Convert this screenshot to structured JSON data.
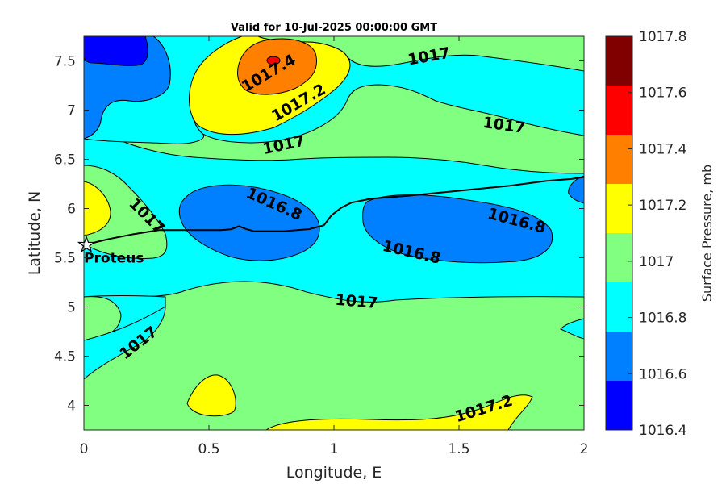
{
  "chart_data": {
    "type": "contour",
    "title": "Valid for 10-Jul-2025 00:00:00 GMT",
    "xlabel": "Longitude, E",
    "ylabel": "Latitude, N",
    "xlim": [
      0,
      2
    ],
    "ylim": [
      3.75,
      7.75
    ],
    "x_ticks": [
      0,
      0.5,
      1,
      1.5,
      2
    ],
    "y_ticks": [
      4,
      4.5,
      5,
      5.5,
      6,
      6.5,
      7,
      7.5
    ],
    "x_tick_labels": [
      "0",
      "0.5",
      "1",
      "1.5",
      "2"
    ],
    "y_tick_labels": [
      "4",
      "4.5",
      "5",
      "5.5",
      "6",
      "6.5",
      "7",
      "7.5"
    ],
    "colorbar": {
      "label": "Surface Pressure, mb",
      "levels": [
        1016.4,
        1016.6,
        1016.8,
        1017,
        1017.2,
        1017.4,
        1017.6,
        1017.8
      ],
      "tick_labels": [
        "1016.4",
        "1016.6",
        "1016.8",
        "1017",
        "1017.2",
        "1017.4",
        "1017.6",
        "1017.8"
      ],
      "colors": [
        "#0000ff",
        "#0080ff",
        "#00ffff",
        "#80ff80",
        "#ffff00",
        "#ff8000",
        "#ff0000",
        "#800000"
      ]
    },
    "contour_labels": [
      {
        "text": "1017.4",
        "lon": 0.74,
        "lat": 7.37,
        "angle": -30
      },
      {
        "text": "1017.2",
        "lon": 0.86,
        "lat": 7.07,
        "angle": -30
      },
      {
        "text": "1017",
        "lon": 1.38,
        "lat": 7.54,
        "angle": -10
      },
      {
        "text": "1017",
        "lon": 1.68,
        "lat": 6.84,
        "angle": 8
      },
      {
        "text": "1017",
        "lon": 0.8,
        "lat": 6.64,
        "angle": -12
      },
      {
        "text": "1016.8",
        "lon": 0.76,
        "lat": 6.04,
        "angle": 24
      },
      {
        "text": "1017",
        "lon": 0.25,
        "lat": 5.92,
        "angle": 45
      },
      {
        "text": "1016.8",
        "lon": 1.73,
        "lat": 5.87,
        "angle": 15
      },
      {
        "text": "1016.8",
        "lon": 1.31,
        "lat": 5.55,
        "angle": 13
      },
      {
        "text": "1017",
        "lon": 1.09,
        "lat": 5.05,
        "angle": 5
      },
      {
        "text": "1017",
        "lon": 0.22,
        "lat": 4.63,
        "angle": -38
      },
      {
        "text": "1017.2",
        "lon": 1.6,
        "lat": 3.96,
        "angle": -17
      }
    ],
    "track": [
      [
        0.01,
        5.63
      ],
      [
        0.05,
        5.66
      ],
      [
        0.1,
        5.69
      ],
      [
        0.2,
        5.74
      ],
      [
        0.3,
        5.78
      ],
      [
        0.4,
        5.78
      ],
      [
        0.5,
        5.78
      ],
      [
        0.55,
        5.78
      ],
      [
        0.59,
        5.79
      ],
      [
        0.62,
        5.82
      ],
      [
        0.65,
        5.79
      ],
      [
        0.68,
        5.77
      ],
      [
        0.8,
        5.77
      ],
      [
        0.9,
        5.79
      ],
      [
        0.96,
        5.83
      ],
      [
        0.99,
        5.93
      ],
      [
        1.03,
        6.01
      ],
      [
        1.07,
        6.06
      ],
      [
        1.15,
        6.1
      ],
      [
        1.3,
        6.13
      ],
      [
        1.5,
        6.18
      ],
      [
        1.7,
        6.23
      ],
      [
        1.85,
        6.28
      ],
      [
        1.95,
        6.3
      ],
      [
        2.0,
        6.32
      ]
    ],
    "marker": {
      "name": "Proteus",
      "lon": 0.01,
      "lat": 5.63
    }
  }
}
